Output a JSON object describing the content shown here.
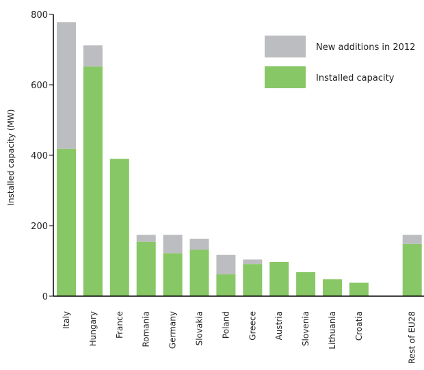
{
  "chart_data": {
    "type": "bar",
    "stacked": true,
    "ylabel": "Installed capacity (MW)",
    "xlabel": "",
    "ylim": [
      0,
      800
    ],
    "yticks": [
      0,
      200,
      400,
      600,
      800
    ],
    "grid": false,
    "legend_position": "top-right",
    "categories": [
      "Italy",
      "Hungary",
      "France",
      "Romania",
      "Germany",
      "Slovakia",
      "Poland",
      "Greece",
      "Austria",
      "Slovenia",
      "Lithuania",
      "Croatia",
      "",
      "Rest of EU28"
    ],
    "series": [
      {
        "name": "Installed capacity",
        "color": "#88c765",
        "values": [
          418,
          652,
          390,
          154,
          122,
          132,
          62,
          91,
          97,
          68,
          48,
          38,
          0,
          148
        ]
      },
      {
        "name": "New additions in 2012",
        "color": "#bcbdc0",
        "values": [
          360,
          60,
          0,
          20,
          52,
          31,
          55,
          13,
          0,
          0,
          0,
          0,
          0,
          26
        ]
      }
    ]
  }
}
